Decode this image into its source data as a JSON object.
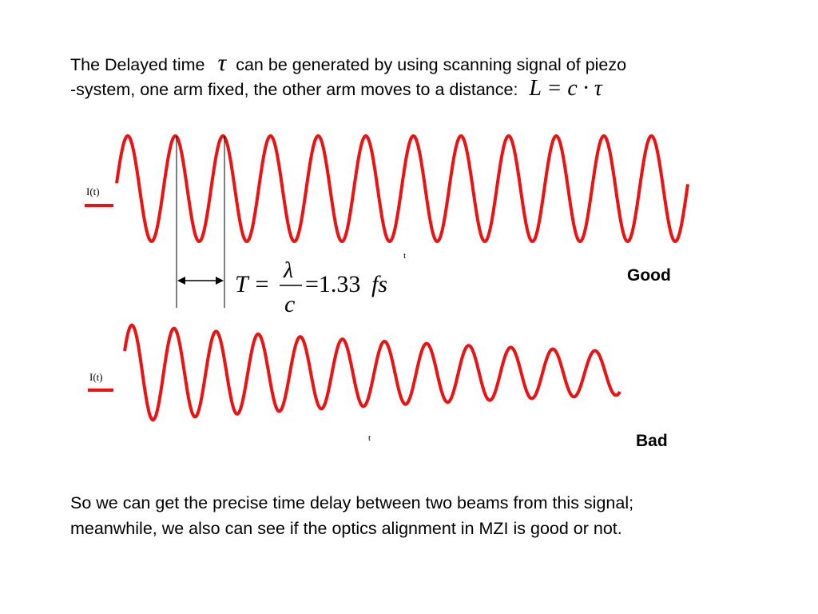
{
  "intro": {
    "line1_a": "The Delayed time",
    "tau_symbol": "τ",
    "line1_b": "can be generated by using scanning signal of piezo",
    "line2": "-system, one arm fixed, the other arm moves to a distance:",
    "distance_formula": "L = c · τ"
  },
  "good_plot": {
    "ylabel": "I(t)",
    "xlabel": "t",
    "verdict": "Good",
    "period_formula": {
      "lhs": "T =",
      "numerator": "λ",
      "denominator": "c",
      "rhs": "=1.33",
      "unit": "fs"
    }
  },
  "bad_plot": {
    "ylabel": "I(t)",
    "xlabel": "t",
    "verdict": "Bad"
  },
  "conclusion": {
    "line1": "So we can get the precise time delay between two beams from this signal;",
    "line2": "meanwhile, we also can see if the optics alignment in MZI is good or not."
  },
  "colors": {
    "signal": "#ee1111",
    "text": "#000000"
  }
}
